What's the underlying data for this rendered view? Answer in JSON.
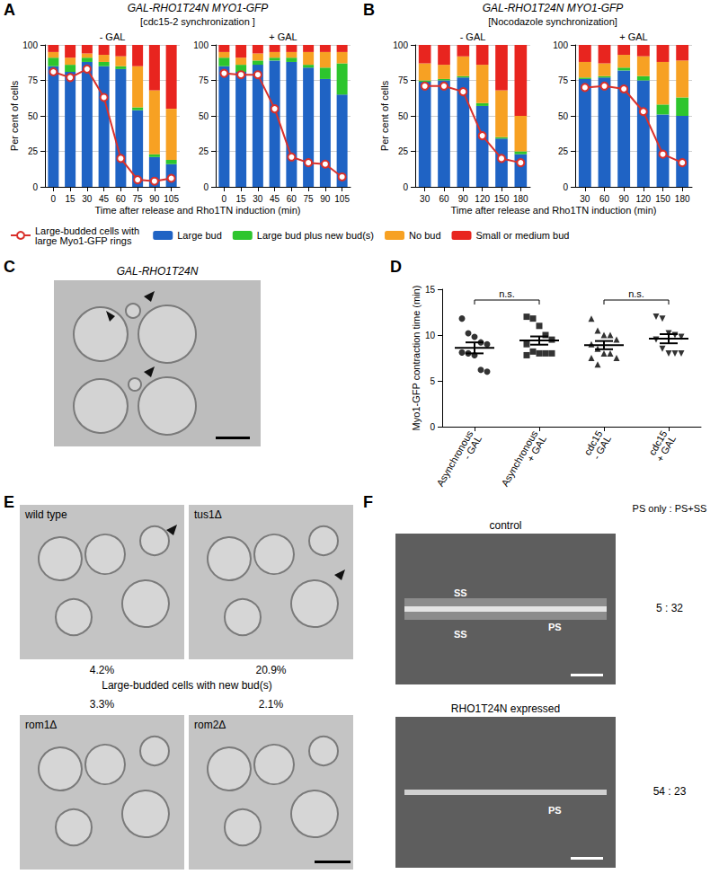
{
  "chart_data": [
    {
      "type": "bar",
      "stacked": true,
      "title": "- GAL",
      "xlabel": "Time after release and Rho1TN induction (min)",
      "ylabel": "Per cent of cells",
      "categories": [
        "0",
        "15",
        "30",
        "45",
        "60",
        "75",
        "90",
        "105"
      ],
      "series": [
        {
          "name": "Large-budded cells with large Myo1-GFP rings",
          "type": "line",
          "color": "#d9302b",
          "marker": "circle",
          "values": [
            81,
            77,
            83,
            63,
            20,
            5,
            4,
            6
          ]
        },
        {
          "name": "Large bud",
          "color": "#1f63c4",
          "values": [
            85,
            81,
            88,
            85,
            83,
            54,
            21,
            16
          ]
        },
        {
          "name": "Large bud plus new bud(s)",
          "color": "#2dc52d",
          "values": [
            6,
            5,
            3,
            3,
            2,
            2,
            2,
            3
          ]
        },
        {
          "name": "No bud",
          "color": "#f7a123",
          "values": [
            4,
            5,
            3,
            5,
            7,
            29,
            45,
            36
          ]
        },
        {
          "name": "Small or medium bud",
          "color": "#e8251f",
          "values": [
            5,
            9,
            6,
            7,
            8,
            15,
            32,
            45
          ]
        }
      ],
      "ylim": [
        0,
        100
      ],
      "yticks": [
        0,
        25,
        50,
        75,
        100
      ],
      "grid": true,
      "legend": "bottom"
    },
    {
      "type": "bar",
      "stacked": true,
      "title": "+ GAL",
      "categories": [
        "0",
        "15",
        "30",
        "45",
        "60",
        "75",
        "90",
        "105"
      ],
      "series": [
        {
          "name": "Large-budded cells with large Myo1-GFP rings",
          "type": "line",
          "color": "#d9302b",
          "marker": "circle",
          "values": [
            80,
            79,
            79,
            55,
            21,
            17,
            16,
            7
          ]
        },
        {
          "name": "Large bud",
          "color": "#1f63c4",
          "values": [
            85,
            81,
            86,
            89,
            88,
            84,
            76,
            65
          ]
        },
        {
          "name": "Large bud plus new bud(s)",
          "color": "#2dc52d",
          "values": [
            6,
            5,
            3,
            2,
            3,
            2,
            8,
            22
          ]
        },
        {
          "name": "No bud",
          "color": "#f7a123",
          "values": [
            4,
            5,
            5,
            4,
            4,
            9,
            11,
            8
          ]
        },
        {
          "name": "Small or medium bud",
          "color": "#e8251f",
          "values": [
            5,
            9,
            6,
            5,
            5,
            5,
            5,
            5
          ]
        }
      ],
      "ylim": [
        0,
        100
      ],
      "yticks": [
        0,
        25,
        50,
        75,
        100
      ],
      "grid": true
    },
    {
      "type": "bar",
      "stacked": true,
      "title": "- GAL",
      "xlabel": "Time after release and Rho1TN induction (min)",
      "ylabel": "Per cent of cells",
      "categories": [
        "30",
        "60",
        "90",
        "120",
        "150",
        "180"
      ],
      "series": [
        {
          "name": "Large-budded cells with large Myo1-GFP rings",
          "type": "line",
          "color": "#d9302b",
          "marker": "circle",
          "values": [
            71,
            71,
            67,
            36,
            20,
            17
          ]
        },
        {
          "name": "Large bud",
          "color": "#1f63c4",
          "values": [
            74,
            75,
            77,
            57,
            34,
            23
          ]
        },
        {
          "name": "Large bud plus new bud(s)",
          "color": "#2dc52d",
          "values": [
            1,
            1,
            1,
            2,
            1,
            2
          ]
        },
        {
          "name": "No bud",
          "color": "#f7a123",
          "values": [
            12,
            10,
            14,
            27,
            33,
            25
          ]
        },
        {
          "name": "Small or medium bud",
          "color": "#e8251f",
          "values": [
            13,
            14,
            8,
            14,
            32,
            50
          ]
        }
      ],
      "ylim": [
        0,
        100
      ],
      "yticks": [
        0,
        25,
        50,
        75,
        100
      ],
      "grid": true
    },
    {
      "type": "bar",
      "stacked": true,
      "title": "+ GAL",
      "categories": [
        "30",
        "60",
        "90",
        "120",
        "150",
        "180"
      ],
      "series": [
        {
          "name": "Large-budded cells with large Myo1-GFP rings",
          "type": "line",
          "color": "#d9302b",
          "marker": "circle",
          "values": [
            70,
            71,
            69,
            53,
            23,
            17
          ]
        },
        {
          "name": "Large bud",
          "color": "#1f63c4",
          "values": [
            76,
            77,
            82,
            75,
            51,
            50
          ]
        },
        {
          "name": "Large bud plus new bud(s)",
          "color": "#2dc52d",
          "values": [
            1,
            1,
            2,
            3,
            7,
            13
          ]
        },
        {
          "name": "No bud",
          "color": "#f7a123",
          "values": [
            11,
            9,
            9,
            14,
            30,
            26
          ]
        },
        {
          "name": "Small or medium bud",
          "color": "#e8251f",
          "values": [
            12,
            13,
            7,
            8,
            12,
            11
          ]
        }
      ],
      "ylim": [
        0,
        100
      ],
      "yticks": [
        0,
        25,
        50,
        75,
        100
      ],
      "grid": true
    },
    {
      "type": "scatter",
      "ylabel": "Myo1-GFP contraction time (min)",
      "categories": [
        "Asynchronous - GAL",
        "Asynchronous + GAL",
        "cdc15 - GAL",
        "cdc15 + GAL"
      ],
      "groups": [
        {
          "marker": "circle",
          "color": "#000000",
          "values": [
            11.8,
            10.2,
            9.8,
            9.2,
            9,
            8.1,
            8,
            7.8,
            6.2,
            6.0
          ],
          "mean": 8.6,
          "error": 0.6
        },
        {
          "marker": "square",
          "color": "#000000",
          "values": [
            12,
            11.8,
            11,
            10,
            9.5,
            9,
            8.2,
            8,
            8,
            8,
            7.8
          ],
          "mean": 9.4,
          "error": 0.45
        },
        {
          "marker": "triangle",
          "color": "#000000",
          "values": [
            11.8,
            10.5,
            10,
            10,
            9.5,
            9,
            8.5,
            8,
            8,
            7.5,
            7.5,
            6.8
          ],
          "mean": 8.9,
          "error": 0.45
        },
        {
          "marker": "triangle_down",
          "color": "#000000",
          "values": [
            12,
            11.8,
            10.2,
            10,
            9.8,
            9.5,
            8.5,
            8,
            8,
            8
          ],
          "mean": 9.6,
          "error": 0.5
        }
      ],
      "annotations": [
        {
          "text": "n.s.",
          "categories": [
            "Asynchronous - GAL",
            "Asynchronous + GAL"
          ]
        },
        {
          "text": "n.s.",
          "categories": [
            "cdc15 - GAL",
            "cdc15 + GAL"
          ]
        }
      ],
      "ylim": [
        0,
        15
      ],
      "yticks": [
        0,
        5,
        10,
        15
      ]
    }
  ],
  "figure": {
    "panels": [
      {
        "label": "A",
        "title": "GAL-RHO1T24N MYO1-GFP",
        "subtitle": "[cdc15-2 synchronization ]"
      },
      {
        "label": "B",
        "title": "GAL-RHO1T24N MYO1-GFP",
        "subtitle": "[Nocodazole synchronization]"
      },
      {
        "label": "C",
        "title": "GAL-RHO1T24N"
      },
      {
        "label": "D"
      },
      {
        "label": "E",
        "caption": "Large-budded cells with new bud(s)",
        "images": [
          {
            "label": "wild type",
            "percent": "4.2%"
          },
          {
            "label": "tus1Δ",
            "percent": "20.9%"
          },
          {
            "label": "rom1Δ",
            "percent": "3.3%"
          },
          {
            "label": "rom2Δ",
            "percent": "2.1%"
          }
        ]
      },
      {
        "label": "F",
        "header": "PS only : PS+SS",
        "images": [
          {
            "label": "control",
            "ratio": "5 : 32",
            "marks": [
              "SS",
              "SS",
              "PS"
            ]
          },
          {
            "label": "RHO1T24N expressed",
            "ratio": "54 : 23",
            "marks": [
              "PS"
            ]
          }
        ]
      }
    ]
  }
}
